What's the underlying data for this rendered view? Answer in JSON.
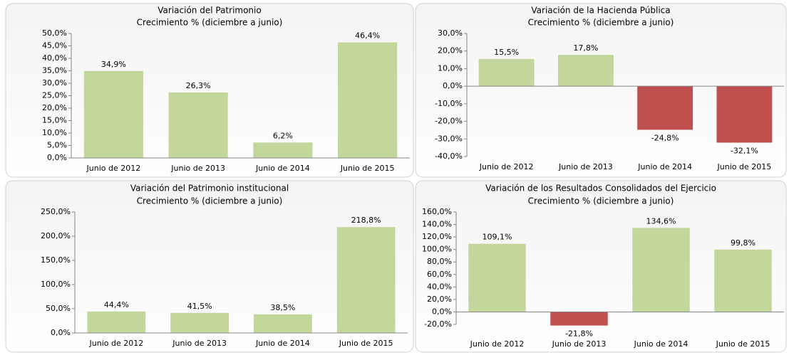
{
  "chart_data": [
    {
      "type": "bar",
      "title": "Variación del Patrimonio",
      "subtitle": "Crecimiento % (diciembre a junio)",
      "categories": [
        "Junio de 2012",
        "Junio de 2013",
        "Junio de 2014",
        "Junio de 2015"
      ],
      "values": [
        34.9,
        26.3,
        6.2,
        46.4
      ],
      "value_labels": [
        "34,9%",
        "26,3%",
        "6,2%",
        "46,4%"
      ],
      "color": "#c3d69b",
      "negative_color": "#c0504d",
      "ylim": [
        0,
        50
      ],
      "yticks": [
        {
          "value": 0,
          "label": "0,0%"
        },
        {
          "value": 5,
          "label": "5,0%"
        },
        {
          "value": 10,
          "label": "10,0%"
        },
        {
          "value": 15,
          "label": "15,0%"
        },
        {
          "value": 20,
          "label": "20,0%"
        },
        {
          "value": 25,
          "label": "25,0%"
        },
        {
          "value": 30,
          "label": "30,0%"
        },
        {
          "value": 35,
          "label": "35,0%"
        },
        {
          "value": 40,
          "label": "40,0%"
        },
        {
          "value": 45,
          "label": "45,0%"
        },
        {
          "value": 50,
          "label": "50,0%"
        }
      ]
    },
    {
      "type": "bar",
      "title": "Variación de la Hacienda Pública",
      "subtitle": "Crecimiento % (diciembre a junio)",
      "categories": [
        "Junio de 2012",
        "Junio de 2013",
        "Junio de 2014",
        "Junio de 2015"
      ],
      "values": [
        15.5,
        17.8,
        -24.8,
        -32.1
      ],
      "value_labels": [
        "15,5%",
        "17,8%",
        "-24,8%",
        "-32,1%"
      ],
      "color": "#c3d69b",
      "negative_color": "#c0504d",
      "ylim": [
        -40,
        30
      ],
      "yticks": [
        {
          "value": -40,
          "label": "-40,0%"
        },
        {
          "value": -30,
          "label": "-30,0%"
        },
        {
          "value": -20,
          "label": "-20,0%"
        },
        {
          "value": -10,
          "label": "-10,0%"
        },
        {
          "value": 0,
          "label": "0,0%"
        },
        {
          "value": 10,
          "label": "10,0%"
        },
        {
          "value": 20,
          "label": "20,0%"
        },
        {
          "value": 30,
          "label": "30,0%"
        }
      ]
    },
    {
      "type": "bar",
      "title": "Variación del Patrimonio  institucional",
      "subtitle": "Crecimiento % (diciembre a junio)",
      "categories": [
        "Junio de 2012",
        "Junio de 2013",
        "Junio de 2014",
        "Junio de 2015"
      ],
      "values": [
        44.4,
        41.5,
        38.5,
        218.8
      ],
      "value_labels": [
        "44,4%",
        "41,5%",
        "38,5%",
        "218,8%"
      ],
      "color": "#c3d69b",
      "negative_color": "#c0504d",
      "ylim": [
        0,
        250
      ],
      "yticks": [
        {
          "value": 0,
          "label": "0,0%"
        },
        {
          "value": 50,
          "label": "50,0%"
        },
        {
          "value": 100,
          "label": "100,0%"
        },
        {
          "value": 150,
          "label": "150,0%"
        },
        {
          "value": 200,
          "label": "200,0%"
        },
        {
          "value": 250,
          "label": "250,0%"
        }
      ]
    },
    {
      "type": "bar",
      "title": "Variación de los Resultados Consolidados del Ejercicio",
      "subtitle": "Crecimiento % (diciembre a junio)",
      "categories": [
        "Junio de 2012",
        "Junio de 2013",
        "Junio de 2014",
        "Junio de 2015"
      ],
      "values": [
        109.1,
        -21.8,
        134.6,
        99.8
      ],
      "value_labels": [
        "109,1%",
        "-21,8%",
        "134,6%",
        "99,8%"
      ],
      "color": "#c3d69b",
      "negative_color": "#c0504d",
      "ylim": [
        -20,
        160
      ],
      "yticks": [
        {
          "value": -20,
          "label": "-20,0%"
        },
        {
          "value": 0,
          "label": "0,0%"
        },
        {
          "value": 20,
          "label": "20,0%"
        },
        {
          "value": 40,
          "label": "40,0%"
        },
        {
          "value": 60,
          "label": "60,0%"
        },
        {
          "value": 80,
          "label": "80,0%"
        },
        {
          "value": 100,
          "label": "100,0%"
        },
        {
          "value": 120,
          "label": "120,0%"
        },
        {
          "value": 140,
          "label": "140,0%"
        },
        {
          "value": 160,
          "label": "160,0%"
        }
      ]
    }
  ]
}
